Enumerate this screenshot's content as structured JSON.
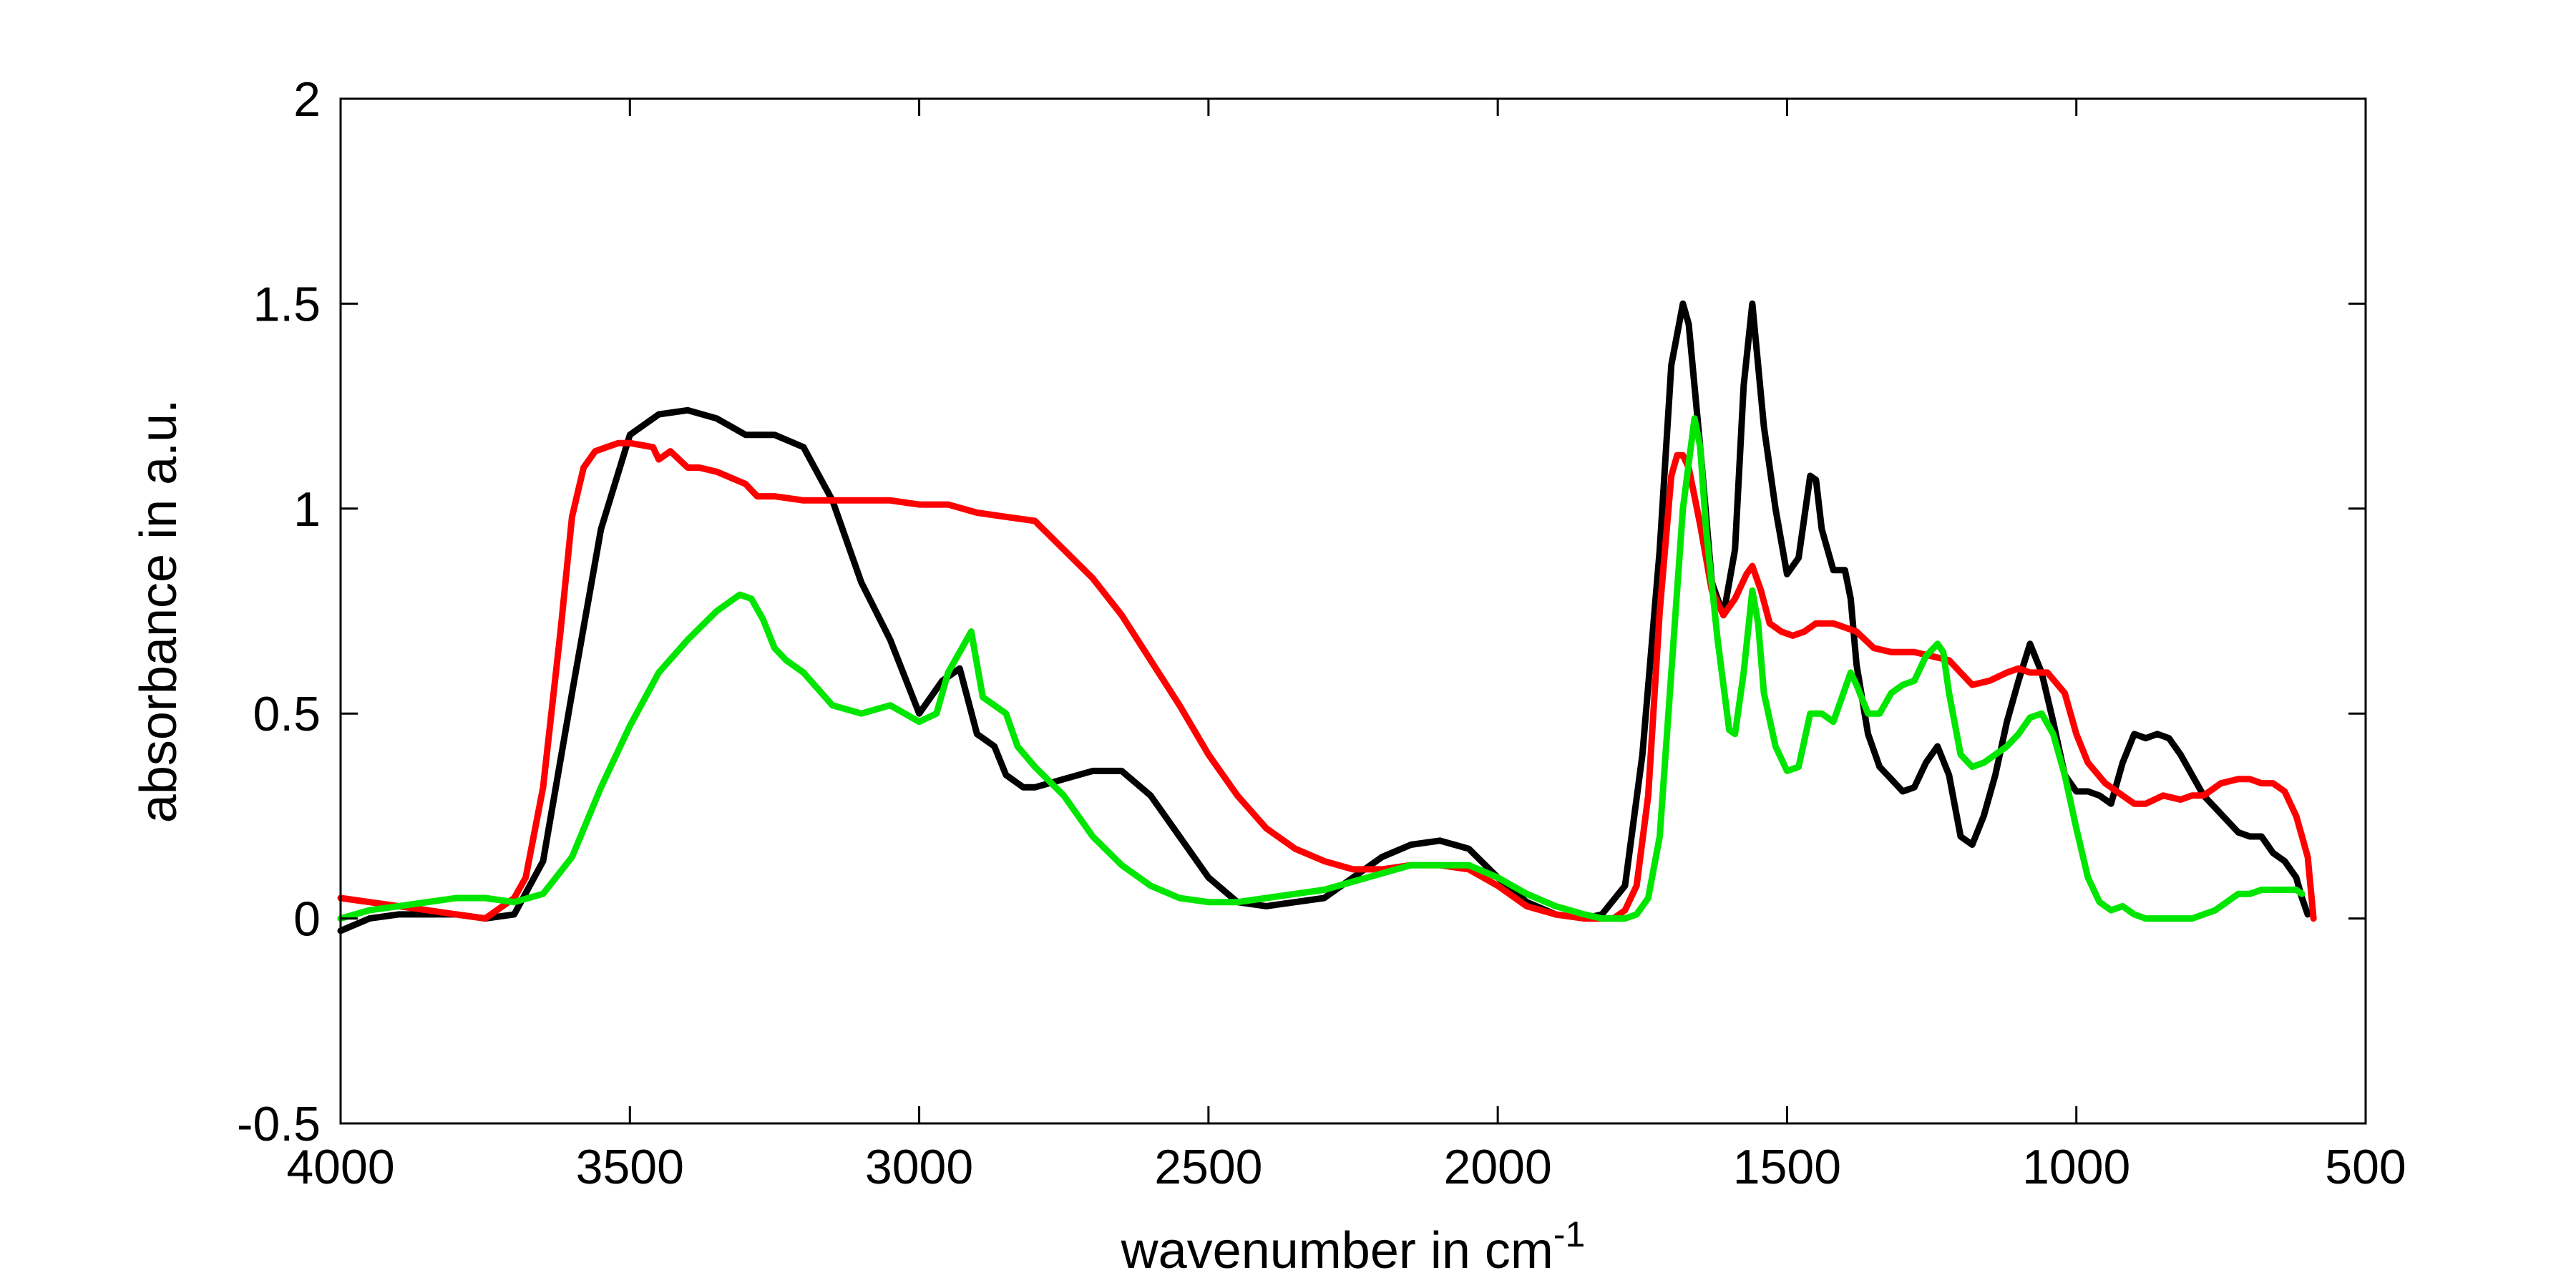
{
  "chart_data": {
    "type": "line",
    "title": "",
    "xlabel": "wavenumber in cm",
    "xlabel_superscript": "-1",
    "ylabel": "absorbance in a.u.",
    "xlim": [
      4000,
      500
    ],
    "x_reversed": true,
    "ylim": [
      -0.5,
      2
    ],
    "x_ticks": [
      4000,
      3500,
      3000,
      2500,
      2000,
      1500,
      1000,
      500
    ],
    "y_ticks": [
      -0.5,
      0,
      0.5,
      1,
      1.5,
      2
    ],
    "x_tick_labels": [
      "4000",
      "3500",
      "3000",
      "2500",
      "2000",
      "1500",
      "1000",
      "500"
    ],
    "y_tick_labels": [
      "-0.5",
      "0",
      "0.5",
      "1",
      "1.5",
      "2"
    ],
    "grid": false,
    "legend": "none",
    "series": [
      {
        "color": "#000000",
        "x": [
          4000,
          3950,
          3900,
          3800,
          3750,
          3700,
          3650,
          3600,
          3550,
          3500,
          3450,
          3400,
          3350,
          3300,
          3250,
          3200,
          3150,
          3100,
          3050,
          3000,
          2960,
          2930,
          2900,
          2870,
          2850,
          2820,
          2800,
          2750,
          2700,
          2650,
          2600,
          2550,
          2500,
          2450,
          2400,
          2350,
          2300,
          2250,
          2200,
          2150,
          2100,
          2050,
          2000,
          1950,
          1900,
          1850,
          1820,
          1780,
          1750,
          1720,
          1700,
          1680,
          1670,
          1650,
          1630,
          1610,
          1590,
          1575,
          1560,
          1540,
          1520,
          1500,
          1480,
          1460,
          1450,
          1440,
          1420,
          1400,
          1390,
          1380,
          1360,
          1340,
          1320,
          1300,
          1280,
          1260,
          1240,
          1220,
          1200,
          1180,
          1160,
          1140,
          1120,
          1100,
          1080,
          1060,
          1040,
          1020,
          1000,
          980,
          960,
          940,
          920,
          900,
          880,
          860,
          840,
          820,
          800,
          780,
          760,
          740,
          720,
          700,
          680,
          660,
          640,
          620,
          610,
          600
        ],
        "y": [
          -0.03,
          0.0,
          0.01,
          0.01,
          0.0,
          0.01,
          0.14,
          0.55,
          0.95,
          1.18,
          1.23,
          1.24,
          1.22,
          1.18,
          1.18,
          1.15,
          1.02,
          0.82,
          0.68,
          0.5,
          0.58,
          0.61,
          0.45,
          0.42,
          0.35,
          0.32,
          0.32,
          0.34,
          0.36,
          0.36,
          0.3,
          0.2,
          0.1,
          0.04,
          0.03,
          0.04,
          0.05,
          0.1,
          0.15,
          0.18,
          0.19,
          0.17,
          0.1,
          0.04,
          0.01,
          0.0,
          0.01,
          0.08,
          0.4,
          0.9,
          1.35,
          1.5,
          1.45,
          1.15,
          0.82,
          0.74,
          0.9,
          1.3,
          1.5,
          1.2,
          1.0,
          0.84,
          0.88,
          1.08,
          1.07,
          0.95,
          0.85,
          0.85,
          0.78,
          0.62,
          0.45,
          0.37,
          0.34,
          0.31,
          0.32,
          0.38,
          0.42,
          0.35,
          0.2,
          0.18,
          0.25,
          0.35,
          0.48,
          0.58,
          0.67,
          0.6,
          0.48,
          0.35,
          0.31,
          0.31,
          0.3,
          0.28,
          0.38,
          0.45,
          0.44,
          0.45,
          0.44,
          0.4,
          0.35,
          0.3,
          0.27,
          0.24,
          0.21,
          0.2,
          0.2,
          0.16,
          0.14,
          0.1,
          0.05,
          0.01
        ]
      },
      {
        "color": "#ff0000",
        "x": [
          4000,
          3950,
          3900,
          3850,
          3800,
          3750,
          3700,
          3680,
          3650,
          3620,
          3600,
          3580,
          3560,
          3540,
          3520,
          3500,
          3460,
          3450,
          3430,
          3400,
          3380,
          3350,
          3300,
          3280,
          3250,
          3200,
          3150,
          3100,
          3050,
          3000,
          2950,
          2900,
          2850,
          2800,
          2750,
          2700,
          2650,
          2600,
          2550,
          2500,
          2450,
          2400,
          2350,
          2300,
          2250,
          2200,
          2150,
          2100,
          2050,
          2000,
          1950,
          1900,
          1850,
          1830,
          1800,
          1780,
          1760,
          1740,
          1720,
          1700,
          1690,
          1680,
          1670,
          1650,
          1630,
          1610,
          1590,
          1570,
          1560,
          1545,
          1530,
          1510,
          1490,
          1470,
          1450,
          1420,
          1400,
          1380,
          1350,
          1320,
          1300,
          1280,
          1250,
          1220,
          1200,
          1180,
          1150,
          1120,
          1100,
          1080,
          1050,
          1020,
          1000,
          980,
          950,
          920,
          900,
          880,
          850,
          820,
          800,
          780,
          750,
          720,
          700,
          680,
          660,
          640,
          620,
          610,
          600,
          590
        ],
        "y": [
          0.05,
          0.04,
          0.03,
          0.02,
          0.01,
          0.0,
          0.05,
          0.1,
          0.32,
          0.7,
          0.98,
          1.1,
          1.14,
          1.15,
          1.16,
          1.16,
          1.15,
          1.12,
          1.14,
          1.1,
          1.1,
          1.09,
          1.06,
          1.03,
          1.03,
          1.02,
          1.02,
          1.02,
          1.02,
          1.01,
          1.01,
          0.99,
          0.98,
          0.97,
          0.9,
          0.83,
          0.74,
          0.63,
          0.52,
          0.4,
          0.3,
          0.22,
          0.17,
          0.14,
          0.12,
          0.12,
          0.13,
          0.13,
          0.12,
          0.08,
          0.03,
          0.01,
          0.0,
          0.0,
          0.0,
          0.02,
          0.08,
          0.3,
          0.75,
          1.08,
          1.13,
          1.13,
          1.1,
          0.96,
          0.8,
          0.74,
          0.78,
          0.84,
          0.86,
          0.8,
          0.72,
          0.7,
          0.69,
          0.7,
          0.72,
          0.72,
          0.71,
          0.7,
          0.66,
          0.65,
          0.65,
          0.65,
          0.64,
          0.63,
          0.6,
          0.57,
          0.58,
          0.6,
          0.61,
          0.6,
          0.6,
          0.55,
          0.45,
          0.38,
          0.33,
          0.3,
          0.28,
          0.28,
          0.3,
          0.29,
          0.3,
          0.3,
          0.33,
          0.34,
          0.34,
          0.33,
          0.33,
          0.31,
          0.25,
          0.2,
          0.15,
          0.0
        ]
      },
      {
        "color": "#00e600",
        "x": [
          4000,
          3950,
          3900,
          3850,
          3800,
          3750,
          3700,
          3650,
          3600,
          3550,
          3500,
          3450,
          3400,
          3350,
          3310,
          3290,
          3270,
          3250,
          3230,
          3200,
          3150,
          3100,
          3050,
          3000,
          2970,
          2950,
          2930,
          2910,
          2890,
          2870,
          2850,
          2830,
          2800,
          2750,
          2700,
          2650,
          2600,
          2550,
          2500,
          2450,
          2400,
          2350,
          2300,
          2250,
          2200,
          2150,
          2100,
          2050,
          2000,
          1950,
          1900,
          1850,
          1820,
          1800,
          1780,
          1760,
          1740,
          1720,
          1700,
          1680,
          1660,
          1650,
          1640,
          1620,
          1600,
          1590,
          1575,
          1560,
          1550,
          1540,
          1520,
          1500,
          1480,
          1460,
          1440,
          1420,
          1400,
          1390,
          1380,
          1360,
          1340,
          1320,
          1300,
          1280,
          1260,
          1240,
          1230,
          1220,
          1200,
          1180,
          1160,
          1140,
          1120,
          1100,
          1080,
          1060,
          1040,
          1020,
          1000,
          980,
          960,
          940,
          920,
          900,
          880,
          860,
          840,
          820,
          800,
          780,
          760,
          740,
          720,
          700,
          680,
          660,
          640,
          620,
          610
        ],
        "y": [
          0.0,
          0.02,
          0.03,
          0.04,
          0.05,
          0.05,
          0.04,
          0.06,
          0.15,
          0.32,
          0.47,
          0.6,
          0.68,
          0.75,
          0.79,
          0.78,
          0.73,
          0.66,
          0.63,
          0.6,
          0.52,
          0.5,
          0.52,
          0.48,
          0.5,
          0.6,
          0.65,
          0.7,
          0.54,
          0.52,
          0.5,
          0.42,
          0.37,
          0.3,
          0.2,
          0.13,
          0.08,
          0.05,
          0.04,
          0.04,
          0.05,
          0.06,
          0.07,
          0.09,
          0.11,
          0.13,
          0.13,
          0.13,
          0.1,
          0.06,
          0.03,
          0.01,
          0.0,
          0.0,
          0.0,
          0.01,
          0.05,
          0.2,
          0.6,
          1.0,
          1.22,
          1.15,
          0.95,
          0.68,
          0.46,
          0.45,
          0.6,
          0.8,
          0.72,
          0.55,
          0.42,
          0.36,
          0.37,
          0.5,
          0.5,
          0.48,
          0.56,
          0.6,
          0.57,
          0.5,
          0.5,
          0.55,
          0.57,
          0.58,
          0.64,
          0.67,
          0.65,
          0.55,
          0.4,
          0.37,
          0.38,
          0.4,
          0.42,
          0.45,
          0.49,
          0.5,
          0.45,
          0.35,
          0.22,
          0.1,
          0.04,
          0.02,
          0.03,
          0.01,
          0.0,
          0.0,
          0.0,
          0.0,
          0.0,
          0.01,
          0.02,
          0.04,
          0.06,
          0.06,
          0.07,
          0.07,
          0.07,
          0.07,
          0.06
        ]
      }
    ]
  }
}
